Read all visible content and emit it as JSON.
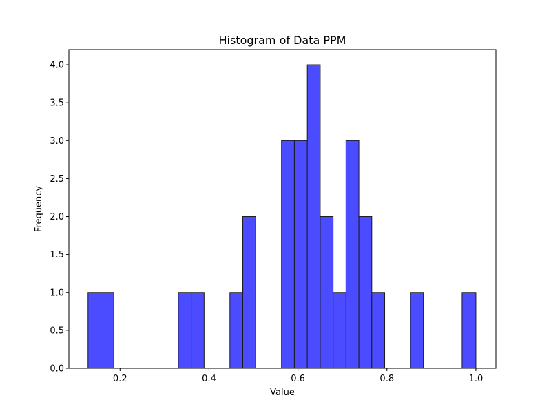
{
  "chart_data": {
    "type": "bar",
    "title": "Histogram of Data PPM",
    "xlabel": "Value",
    "ylabel": "Frequency",
    "xlim": [
      0.085,
      1.045
    ],
    "ylim": [
      0,
      4.2
    ],
    "xticks": [
      {
        "value": 0.2,
        "label": "0.2"
      },
      {
        "value": 0.4,
        "label": "0.4"
      },
      {
        "value": 0.6,
        "label": "0.6"
      },
      {
        "value": 0.8,
        "label": "0.8"
      },
      {
        "value": 1.0,
        "label": "1.0"
      }
    ],
    "yticks": [
      {
        "value": 0.0,
        "label": "0.0"
      },
      {
        "value": 0.5,
        "label": "0.5"
      },
      {
        "value": 1.0,
        "label": "1.0"
      },
      {
        "value": 1.5,
        "label": "1.5"
      },
      {
        "value": 2.0,
        "label": "2.0"
      },
      {
        "value": 2.5,
        "label": "2.5"
      },
      {
        "value": 3.0,
        "label": "3.0"
      },
      {
        "value": 3.5,
        "label": "3.5"
      },
      {
        "value": 4.0,
        "label": "4.0"
      }
    ],
    "bins": [
      {
        "start": 0.128,
        "end": 0.157,
        "count": 1
      },
      {
        "start": 0.157,
        "end": 0.186,
        "count": 1
      },
      {
        "start": 0.186,
        "end": 0.215,
        "count": 0
      },
      {
        "start": 0.215,
        "end": 0.244,
        "count": 0
      },
      {
        "start": 0.244,
        "end": 0.273,
        "count": 0
      },
      {
        "start": 0.273,
        "end": 0.302,
        "count": 0
      },
      {
        "start": 0.302,
        "end": 0.331,
        "count": 0
      },
      {
        "start": 0.331,
        "end": 0.36,
        "count": 1
      },
      {
        "start": 0.36,
        "end": 0.389,
        "count": 1
      },
      {
        "start": 0.389,
        "end": 0.418,
        "count": 0
      },
      {
        "start": 0.418,
        "end": 0.447,
        "count": 0
      },
      {
        "start": 0.447,
        "end": 0.476,
        "count": 1
      },
      {
        "start": 0.476,
        "end": 0.505,
        "count": 2
      },
      {
        "start": 0.505,
        "end": 0.534,
        "count": 0
      },
      {
        "start": 0.534,
        "end": 0.563,
        "count": 0
      },
      {
        "start": 0.563,
        "end": 0.592,
        "count": 3
      },
      {
        "start": 0.592,
        "end": 0.621,
        "count": 3
      },
      {
        "start": 0.621,
        "end": 0.65,
        "count": 4
      },
      {
        "start": 0.65,
        "end": 0.679,
        "count": 2
      },
      {
        "start": 0.679,
        "end": 0.708,
        "count": 1
      },
      {
        "start": 0.708,
        "end": 0.737,
        "count": 3
      },
      {
        "start": 0.737,
        "end": 0.766,
        "count": 2
      },
      {
        "start": 0.766,
        "end": 0.795,
        "count": 1
      },
      {
        "start": 0.795,
        "end": 0.824,
        "count": 0
      },
      {
        "start": 0.824,
        "end": 0.853,
        "count": 0
      },
      {
        "start": 0.853,
        "end": 0.882,
        "count": 1
      },
      {
        "start": 0.882,
        "end": 0.911,
        "count": 0
      },
      {
        "start": 0.911,
        "end": 0.94,
        "count": 0
      },
      {
        "start": 0.94,
        "end": 0.969,
        "count": 0
      },
      {
        "start": 0.969,
        "end": 1.0,
        "count": 1
      }
    ],
    "bar_color": "#4b4bff",
    "bar_edge_color": "#1a1a1a",
    "grid": false,
    "legend": "none"
  }
}
